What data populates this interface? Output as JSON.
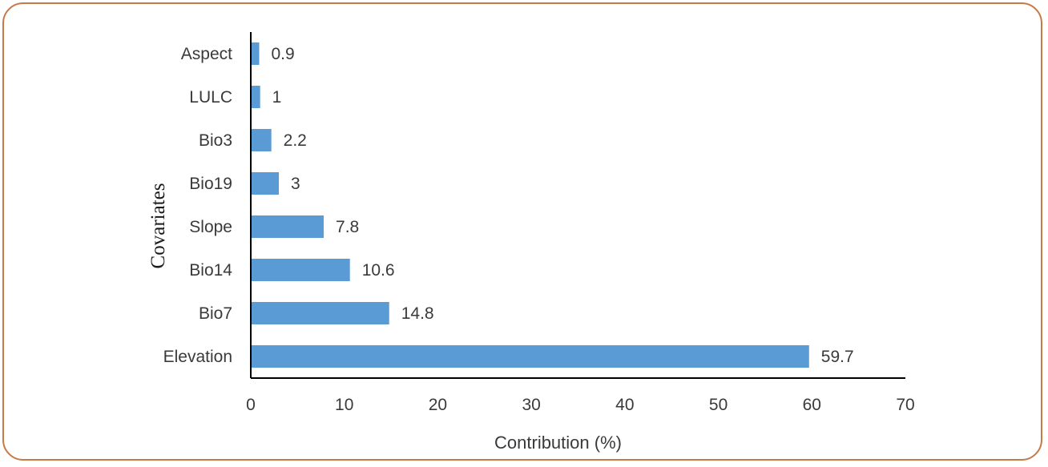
{
  "chart_data": {
    "type": "bar",
    "orientation": "horizontal",
    "categories": [
      "Elevation",
      "Bio7",
      "Bio14",
      "Slope",
      "Bio19",
      "Bio3",
      "LULC",
      "Aspect"
    ],
    "values": [
      59.7,
      14.8,
      10.6,
      7.8,
      3,
      2.2,
      1,
      0.9
    ],
    "value_labels": [
      "59.7",
      "14.8",
      "10.6",
      "7.8",
      "3",
      "2.2",
      "1",
      "0.9"
    ],
    "title": "",
    "xlabel": "Contribution (%)",
    "ylabel": "Covariates",
    "xlim": [
      0,
      70
    ],
    "xticks": [
      "0",
      "10",
      "20",
      "30",
      "40",
      "50",
      "60",
      "70"
    ],
    "grid": false,
    "legend": "none",
    "bar_color": "#5b9bd5",
    "frame_color": "#c77a45"
  }
}
